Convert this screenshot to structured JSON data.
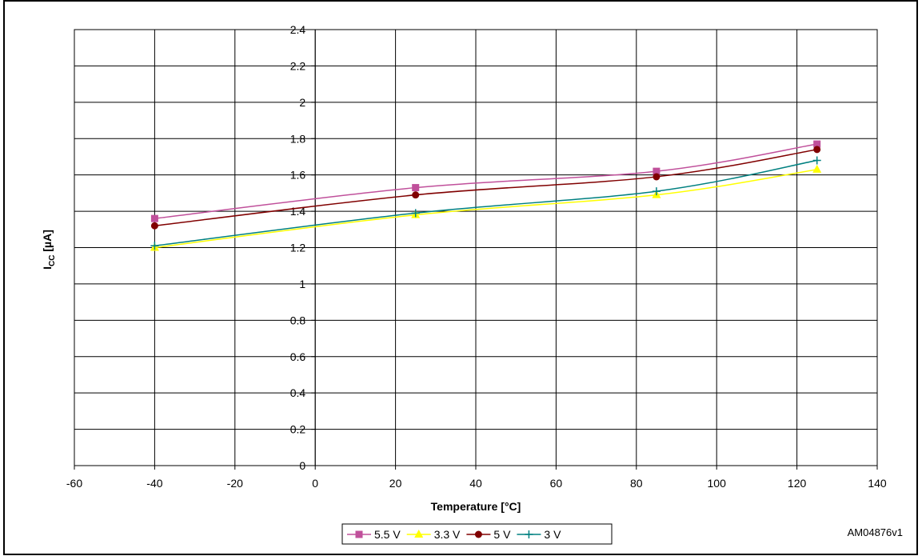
{
  "chart_data": {
    "type": "line",
    "title": "",
    "xlabel": "Temperature [°C]",
    "ylabel": {
      "main": "I",
      "sub": "CC",
      "unit": " [µA]"
    },
    "xlim": [
      -60,
      140
    ],
    "ylim": [
      0,
      2.4
    ],
    "x_ticks": [
      "-60",
      "-40",
      "-20",
      "0",
      "20",
      "40",
      "60",
      "80",
      "100",
      "120",
      "140"
    ],
    "y_ticks": [
      "0",
      "0.2",
      "0.4",
      "0.6",
      "0.8",
      "1",
      "1.2",
      "1.4",
      "1.6",
      "1.8",
      "2",
      "2.2",
      "2.4"
    ],
    "grid": true,
    "legend_position": "bottom-center",
    "series": [
      {
        "name": "5.5 V",
        "color": "#c0509b",
        "marker": "square",
        "x": [
          -40,
          25,
          85,
          125
        ],
        "y": [
          1.36,
          1.53,
          1.62,
          1.77
        ]
      },
      {
        "name": "3.3 V",
        "color": "#ffff00",
        "marker": "triangle",
        "x": [
          -40,
          25,
          85,
          125
        ],
        "y": [
          1.2,
          1.38,
          1.49,
          1.63
        ]
      },
      {
        "name": "5 V",
        "color": "#800000",
        "marker": "circle",
        "x": [
          -40,
          25,
          85,
          125
        ],
        "y": [
          1.32,
          1.49,
          1.59,
          1.74
        ]
      },
      {
        "name": "3 V",
        "color": "#008080",
        "marker": "plus",
        "x": [
          -40,
          25,
          85,
          125
        ],
        "y": [
          1.21,
          1.39,
          1.51,
          1.68
        ]
      }
    ],
    "annotations": [
      "AM04876v1"
    ]
  }
}
